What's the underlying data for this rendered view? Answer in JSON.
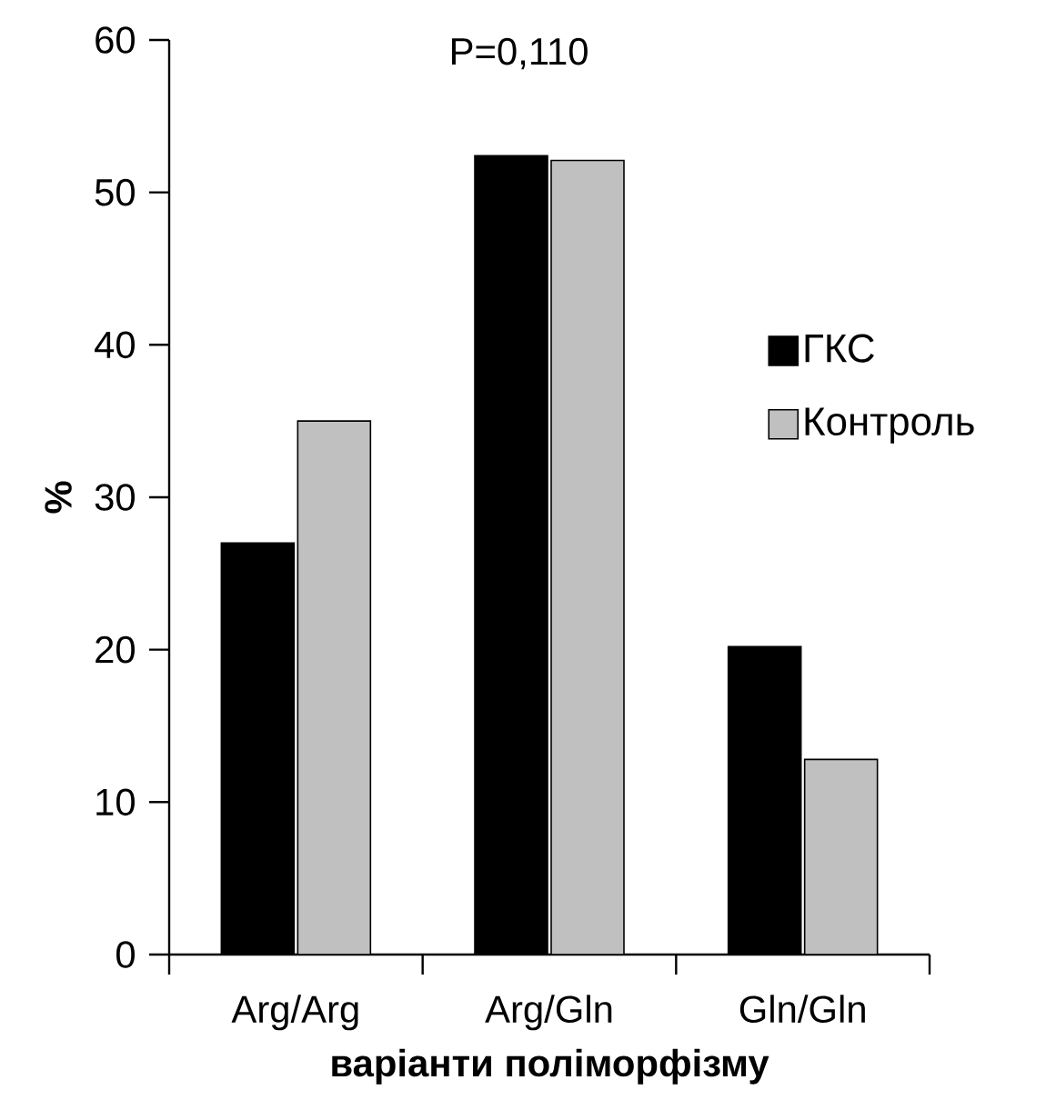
{
  "chart_data": {
    "type": "bar",
    "annotations": [
      "P=0,110"
    ],
    "xlabel": "варіанти поліморфізму",
    "ylabel": "%",
    "categories": [
      "Arg/Arg",
      "Arg/Gln",
      "Gln/Gln"
    ],
    "series": [
      {
        "name": "ГКС",
        "color": "#000000",
        "values": [
          27.0,
          52.4,
          20.2
        ]
      },
      {
        "name": "Контроль",
        "color": "#c0c0c0",
        "values": [
          35.0,
          52.1,
          12.8
        ]
      }
    ],
    "ylim": [
      0,
      60
    ],
    "yticks": [
      0,
      10,
      20,
      30,
      40,
      50,
      60
    ],
    "legend": "right",
    "grid": false
  }
}
